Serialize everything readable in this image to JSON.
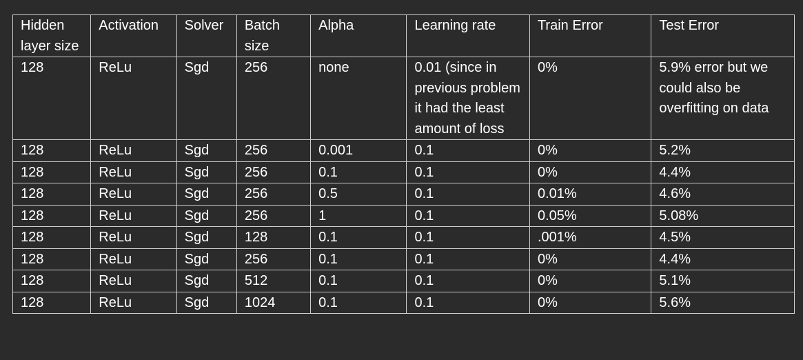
{
  "table": {
    "headers": [
      "Hidden layer size",
      "Activation",
      "Solver",
      "Batch size",
      "Alpha",
      "Learning rate",
      "Train Error",
      "Test Error"
    ],
    "rows": [
      [
        "128",
        "ReLu",
        "Sgd",
        "256",
        "none",
        "0.01 (since in previous problem it had the least amount of loss",
        "0%",
        "5.9% error but we could also be overfitting on data"
      ],
      [
        "128",
        "ReLu",
        "Sgd",
        "256",
        "0.001",
        "0.1",
        "0%",
        "5.2%"
      ],
      [
        "128",
        "ReLu",
        "Sgd",
        "256",
        "0.1",
        "0.1",
        "0%",
        "4.4%"
      ],
      [
        "128",
        "ReLu",
        "Sgd",
        "256",
        "0.5",
        "0.1",
        "0.01%",
        "4.6%"
      ],
      [
        "128",
        "ReLu",
        "Sgd",
        "256",
        "1",
        "0.1",
        "0.05%",
        "5.08%"
      ],
      [
        "128",
        "ReLu",
        "Sgd",
        "128",
        "0.1",
        "0.1",
        ".001%",
        "4.5%"
      ],
      [
        "128",
        "ReLu",
        "Sgd",
        "256",
        "0.1",
        "0.1",
        "0%",
        "4.4%"
      ],
      [
        "128",
        "ReLu",
        "Sgd",
        "512",
        "0.1",
        "0.1",
        "0%",
        "5.1%"
      ],
      [
        "128",
        "ReLu",
        "Sgd",
        "1024",
        "0.1",
        "0.1",
        "0%",
        "5.6%"
      ]
    ]
  }
}
